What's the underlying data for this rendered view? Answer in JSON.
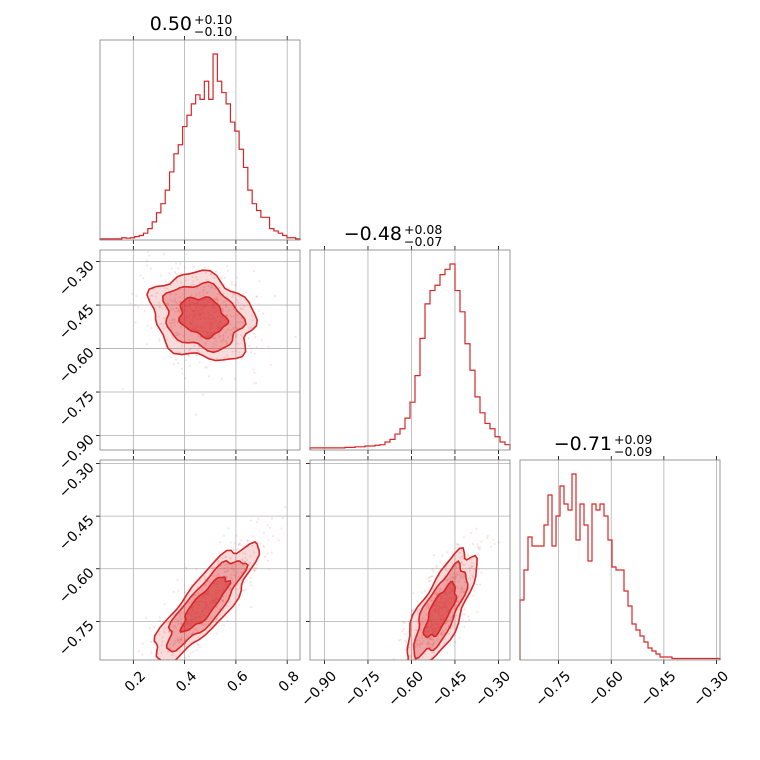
{
  "chart_data": {
    "type": "corner",
    "color": "#d62728",
    "parameters": [
      {
        "summary": {
          "median": "0.50",
          "plus": "+0.10",
          "minus": "−0.10"
        },
        "range": [
          0.07,
          0.85
        ],
        "ticks": [
          0.2,
          0.4,
          0.6,
          0.8
        ],
        "tick_labels": [
          "0.2",
          "0.4",
          "0.6",
          "0.8"
        ]
      },
      {
        "summary": {
          "median": "−0.48",
          "plus": "+0.08",
          "minus": "−0.07"
        },
        "range": [
          -0.95,
          -0.26
        ],
        "ticks": [
          -0.9,
          -0.75,
          -0.6,
          -0.45,
          -0.3
        ],
        "tick_labels": [
          "−0.90",
          "−0.75",
          "−0.60",
          "−0.45",
          "−0.30"
        ]
      },
      {
        "summary": {
          "median": "−0.71",
          "plus": "+0.09",
          "minus": "−0.09"
        },
        "range": [
          -0.86,
          -0.29
        ],
        "ticks": [
          -0.75,
          -0.6,
          -0.45,
          -0.3
        ],
        "tick_labels": [
          "−0.75",
          "−0.60",
          "−0.45",
          "−0.30"
        ]
      }
    ],
    "histograms": [
      {
        "param": 0,
        "bins": [
          0.07,
          0.85
        ],
        "counts": [
          0.5,
          0.5,
          0.5,
          0.5,
          0.5,
          1,
          0.8,
          1,
          1.5,
          2,
          3,
          5,
          8,
          12,
          16,
          22,
          30,
          38,
          42,
          50,
          55,
          60,
          64,
          62,
          70,
          62,
          82,
          70,
          65,
          60,
          52,
          48,
          40,
          32,
          22,
          16,
          13,
          10,
          10,
          5,
          4,
          3,
          2,
          1,
          1,
          0.5
        ]
      },
      {
        "param": 1,
        "bins": [
          -0.95,
          -0.26
        ],
        "counts": [
          0.8,
          0.8,
          0.8,
          0.8,
          0.8,
          0.8,
          0.8,
          1,
          1,
          1.2,
          1.2,
          1.5,
          1.5,
          1.8,
          2,
          3,
          4,
          6,
          8,
          12,
          18,
          28,
          42,
          55,
          60,
          62,
          66,
          68,
          70,
          60,
          52,
          40,
          30,
          20,
          14,
          10,
          8,
          5,
          3,
          2
        ]
      },
      {
        "param": 2,
        "bins": [
          -0.86,
          -0.29
        ],
        "counts": [
          20,
          30,
          41,
          38,
          38,
          38,
          45,
          55,
          38,
          48,
          58,
          52,
          50,
          62,
          40,
          52,
          45,
          33,
          52,
          50,
          52,
          48,
          40,
          31,
          30,
          30,
          23,
          18,
          12,
          10,
          8,
          6,
          4,
          3,
          2,
          1,
          1,
          1,
          0.5,
          0.5,
          0.5,
          0.5,
          0.5,
          0.5,
          0.5,
          0.5,
          0.5,
          0.5,
          0.5,
          0.5
        ]
      }
    ],
    "correlations": [
      {
        "x_param": 0,
        "y_param": 1,
        "mean": [
          0.47,
          -0.49
        ],
        "sd": [
          0.1,
          0.075
        ],
        "rho": -0.2
      },
      {
        "x_param": 0,
        "y_param": 2,
        "mean": [
          0.48,
          -0.7
        ],
        "sd": [
          0.1,
          0.085
        ],
        "rho": 0.85
      },
      {
        "x_param": 1,
        "y_param": 2,
        "mean": [
          -0.5,
          -0.72
        ],
        "sd": [
          0.06,
          0.085
        ],
        "rho": 0.75
      }
    ],
    "contour_levels": [
      0.39,
      0.86,
      1.39
    ],
    "grid": true
  }
}
